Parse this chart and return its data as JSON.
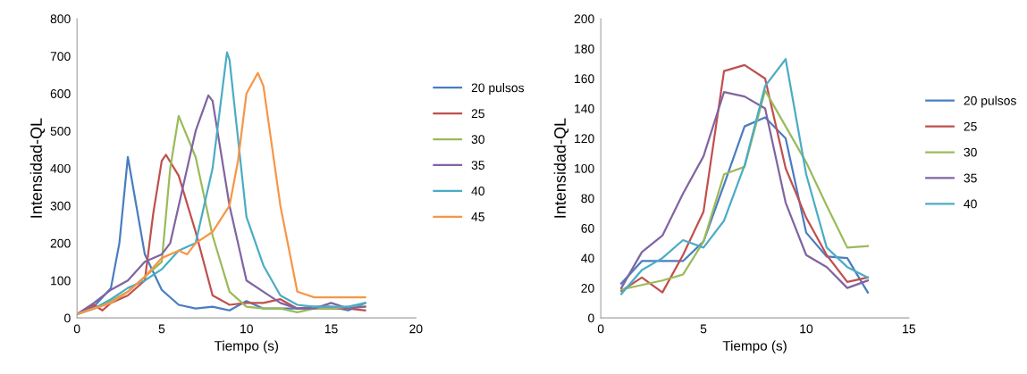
{
  "chart_data": [
    {
      "type": "line",
      "xlabel": "Tiempo (s)",
      "ylabel": "Intensidad-QL",
      "xlim": [
        0,
        20
      ],
      "xticks": [
        0,
        5,
        10,
        15,
        20
      ],
      "ylim": [
        0,
        800
      ],
      "yticks": [
        0,
        100,
        200,
        300,
        400,
        500,
        600,
        700,
        800
      ],
      "grid": false,
      "legend": "right",
      "marker": "none",
      "line_style": "solid",
      "series": [
        {
          "name": "20 pulsos",
          "color": "#4a7dc0",
          "x": [
            0,
            1,
            2,
            2.5,
            3,
            3.5,
            4,
            5,
            6,
            7,
            8,
            9,
            10,
            11,
            12,
            13,
            14,
            15,
            16,
            17
          ],
          "values": [
            10,
            30,
            80,
            200,
            430,
            300,
            170,
            75,
            35,
            25,
            30,
            20,
            45,
            25,
            25,
            25,
            30,
            30,
            20,
            40
          ]
        },
        {
          "name": "25",
          "color": "#c0504d",
          "x": [
            0,
            1,
            1.5,
            2,
            3,
            4,
            4.5,
            5,
            5.25,
            6,
            7,
            8,
            9,
            10,
            11,
            12,
            13,
            14,
            15,
            16,
            17
          ],
          "values": [
            10,
            35,
            20,
            40,
            60,
            100,
            280,
            420,
            436,
            380,
            230,
            60,
            35,
            40,
            40,
            50,
            25,
            25,
            25,
            25,
            20
          ]
        },
        {
          "name": "30",
          "color": "#9bbb59",
          "x": [
            0,
            1,
            2,
            3,
            4,
            5,
            5.5,
            6,
            7,
            8,
            9,
            10,
            11,
            12,
            13,
            14,
            15,
            16,
            17
          ],
          "values": [
            10,
            25,
            45,
            70,
            110,
            150,
            400,
            540,
            430,
            220,
            70,
            30,
            25,
            25,
            15,
            25,
            25,
            30,
            30
          ]
        },
        {
          "name": "35",
          "color": "#8064a2",
          "x": [
            0,
            1,
            2,
            3,
            4,
            5,
            5.5,
            6,
            7,
            7.75,
            8,
            9,
            10,
            11,
            12,
            13,
            14,
            15,
            16,
            17
          ],
          "values": [
            10,
            40,
            75,
            100,
            150,
            170,
            200,
            300,
            500,
            595,
            580,
            300,
            100,
            70,
            40,
            25,
            25,
            40,
            25,
            30
          ]
        },
        {
          "name": "40",
          "color": "#4bacc6",
          "x": [
            0,
            1,
            2,
            3,
            4,
            5,
            6,
            7,
            8,
            8.85,
            9,
            10,
            11,
            12,
            13,
            14,
            15,
            16,
            17
          ],
          "values": [
            10,
            25,
            50,
            80,
            100,
            130,
            180,
            200,
            400,
            710,
            690,
            270,
            140,
            60,
            35,
            30,
            30,
            30,
            40
          ]
        },
        {
          "name": "45",
          "color": "#f79646",
          "x": [
            0,
            1,
            2,
            3,
            4,
            5,
            6,
            6.5,
            7,
            8,
            9,
            9.5,
            10,
            10.67,
            11,
            12,
            13,
            14,
            15,
            16,
            17
          ],
          "values": [
            10,
            25,
            40,
            70,
            110,
            160,
            180,
            170,
            200,
            230,
            300,
            420,
            600,
            655,
            620,
            300,
            70,
            55,
            55,
            55,
            55
          ]
        }
      ]
    },
    {
      "type": "line",
      "xlabel": "Tiempo (s)",
      "ylabel": "Intensidad-QL",
      "xlim": [
        0,
        15
      ],
      "xticks": [
        0,
        5,
        10,
        15
      ],
      "ylim": [
        0,
        200
      ],
      "yticks": [
        0,
        20,
        40,
        60,
        80,
        100,
        120,
        140,
        160,
        180,
        200
      ],
      "grid": false,
      "legend": "right",
      "marker": "none",
      "line_style": "solid",
      "x": [
        1,
        2,
        3,
        4,
        5,
        6,
        7,
        8,
        9,
        10,
        11,
        12,
        13
      ],
      "series": [
        {
          "name": "20 pulsos",
          "color": "#4a7dc0",
          "values": [
            23,
            38,
            38,
            38,
            51,
            89,
            128,
            134,
            120,
            57,
            41,
            40,
            17
          ]
        },
        {
          "name": "25",
          "color": "#c0504d",
          "values": [
            18,
            27,
            17,
            42,
            71,
            165,
            169,
            160,
            100,
            67,
            42,
            24,
            27
          ]
        },
        {
          "name": "30",
          "color": "#9bbb59",
          "values": [
            19,
            22,
            25,
            29,
            51,
            96,
            101,
            152,
            128,
            104,
            75,
            47,
            48
          ]
        },
        {
          "name": "35",
          "color": "#8064a2",
          "values": [
            20,
            44,
            55,
            83,
            108,
            151,
            148,
            140,
            77,
            42,
            34,
            20,
            25
          ]
        },
        {
          "name": "40",
          "color": "#4bacc6",
          "values": [
            16,
            32,
            40,
            52,
            47,
            65,
            102,
            155,
            173,
            96,
            47,
            34,
            27
          ]
        }
      ]
    }
  ]
}
